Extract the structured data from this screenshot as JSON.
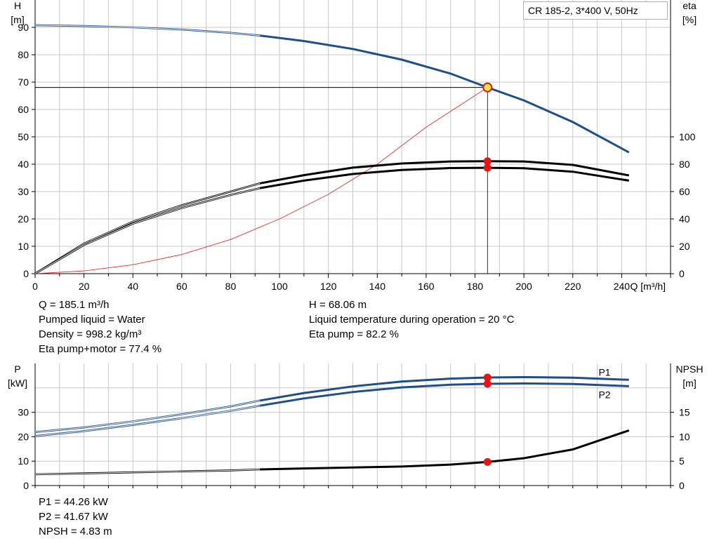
{
  "chart_data": [
    {
      "type": "line",
      "title": "CR 185-2, 3*400 V, 50Hz",
      "x_label": "Q [m³/h]",
      "y_left_label": [
        "H",
        "[m]"
      ],
      "y_right_label": [
        "eta",
        "[%]"
      ],
      "x_range": [
        0,
        260
      ],
      "x_ticks": [
        0,
        20,
        40,
        60,
        80,
        100,
        120,
        140,
        160,
        180,
        200,
        220,
        240
      ],
      "y_left_range": [
        0,
        100
      ],
      "y_left_ticks": [
        0,
        10,
        20,
        30,
        40,
        50,
        60,
        70,
        80,
        90
      ],
      "y_right_range": [
        0,
        200
      ],
      "y_right_ticks": [
        0,
        20,
        40,
        60,
        80,
        100
      ],
      "grid": true,
      "series": [
        {
          "axis": "left",
          "color": "#1f4e8c",
          "x": [
            0,
            20,
            40,
            60,
            80,
            92,
            110,
            130,
            150,
            170,
            185.1,
            200,
            220,
            243
          ],
          "y": [
            90.8,
            90.5,
            90,
            89.2,
            88,
            87,
            85,
            82.1,
            78.2,
            73.1,
            68.06,
            63.3,
            55.4,
            44.3
          ],
          "dashed_until": 92
        },
        {
          "axis": "right",
          "color": "#e8302c",
          "x": [
            0,
            20,
            40,
            60,
            80,
            100,
            120,
            140,
            160,
            185.1
          ],
          "y": [
            0,
            2,
            6.5,
            14,
            25,
            40,
            58,
            80,
            107,
            136.1
          ]
        },
        {
          "axis": "right",
          "color": "#000000",
          "x": [
            0,
            20,
            40,
            60,
            80,
            92,
            110,
            130,
            150,
            170,
            185.1,
            200,
            220,
            243
          ],
          "y": [
            0,
            22,
            38,
            50,
            60,
            66,
            72,
            77.5,
            80.5,
            82,
            82.2,
            82,
            79.5,
            71.8
          ],
          "dashed_until": 92
        },
        {
          "axis": "right",
          "color": "#000000",
          "x": [
            0,
            20,
            40,
            60,
            80,
            92,
            110,
            130,
            150,
            170,
            185.1,
            200,
            220,
            243
          ],
          "y": [
            0,
            21,
            36.5,
            48,
            57.5,
            62.5,
            68,
            72.8,
            75.8,
            77.2,
            77.4,
            77,
            74.5,
            68
          ],
          "dashed_until": 92
        }
      ],
      "operating_point": {
        "q": 185.1,
        "h": 68.06,
        "eta_pump": 82.2,
        "eta_total": 77.4
      }
    },
    {
      "type": "line",
      "x_range": [
        0,
        260
      ],
      "y_left_label": [
        "P",
        "[kW]"
      ],
      "y_right_label": [
        "NPSH",
        "[m]"
      ],
      "y_left_range": [
        0,
        50
      ],
      "y_left_ticks": [
        0,
        10,
        20,
        30
      ],
      "y_right_range": [
        0,
        25
      ],
      "y_right_ticks": [
        0,
        5,
        10,
        15
      ],
      "grid": true,
      "series": [
        {
          "name": "P1",
          "axis": "left",
          "color": "#1f4e8c",
          "x": [
            0,
            20,
            40,
            60,
            80,
            92,
            110,
            130,
            150,
            170,
            185.1,
            200,
            220,
            243
          ],
          "y": [
            21.9,
            23.8,
            26.3,
            29.2,
            32.4,
            34.8,
            37.9,
            40.6,
            42.6,
            43.8,
            44.26,
            44.4,
            44.2,
            43.3
          ],
          "dashed_until": 92
        },
        {
          "name": "P2",
          "axis": "left",
          "color": "#1f4e8c",
          "x": [
            0,
            20,
            40,
            60,
            80,
            92,
            110,
            130,
            150,
            170,
            185.1,
            200,
            220,
            243
          ],
          "y": [
            20.3,
            22.3,
            24.8,
            27.6,
            30.6,
            32.7,
            35.7,
            38.3,
            40.2,
            41.3,
            41.67,
            41.8,
            41.6,
            40.7
          ],
          "dashed_until": 92
        },
        {
          "axis": "right",
          "color": "#000000",
          "x": [
            0,
            20,
            40,
            60,
            80,
            92,
            110,
            130,
            150,
            170,
            185.1,
            200,
            220,
            243
          ],
          "y": [
            2.3,
            2.5,
            2.7,
            2.9,
            3.1,
            3.3,
            3.5,
            3.7,
            3.9,
            4.3,
            4.83,
            5.6,
            7.4,
            11.3
          ],
          "dashed_until": 92
        }
      ],
      "operating_point": {
        "q": 185.1,
        "p1": 44.26,
        "p2": 41.67,
        "npsh": 4.83
      },
      "series_labels": [
        "P1",
        "P2"
      ]
    }
  ],
  "info_top_left": [
    "Q = 185.1 m³/h",
    "Pumped liquid = Water",
    "Density = 998.2 kg/m³",
    "Eta pump+motor = 77.4 %"
  ],
  "info_top_right": [
    "H = 68.06 m",
    "Liquid temperature during operation = 20 °C",
    "Eta pump = 82.2 %"
  ],
  "info_bottom": [
    "P1 = 44.26 kW",
    "P2 = 41.67 kW",
    "NPSH = 4.83 m"
  ],
  "colors": {
    "blue": "#1f4e8c",
    "red": "#e8302c",
    "grid": "#c8c8c8",
    "marker": "#ee1111",
    "marker_highlight": "#f5e64a"
  }
}
